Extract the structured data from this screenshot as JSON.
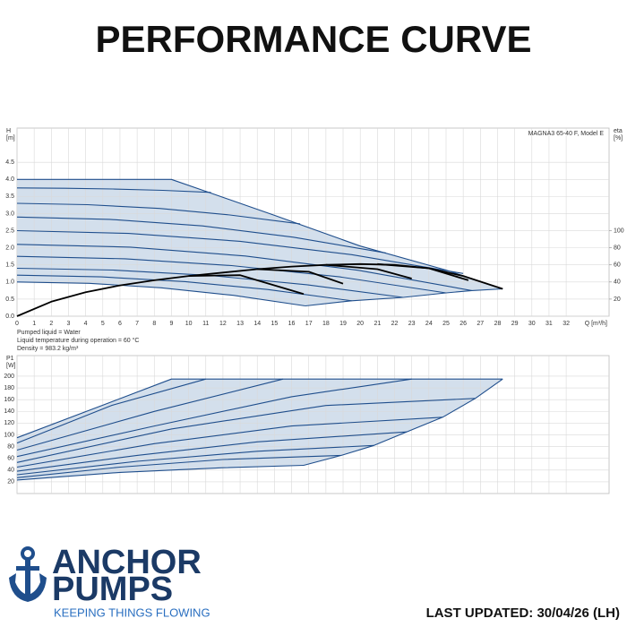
{
  "header": {
    "title": "PERFORMANCE CURVE"
  },
  "notes": [
    "Pumped liquid = Water",
    "Liquid temperature during operation = 60 °C",
    "Density = 983.2 kg/m³"
  ],
  "footer": {
    "brand_line1": "ANCHOR",
    "brand_line2": "PUMPS",
    "tagline": "KEEPING THINGS FLOWING",
    "updated": "LAST UPDATED: 30/04/26 (LH)"
  },
  "chart_data": [
    {
      "type": "line",
      "y_label": "H",
      "y_unit": "[m]",
      "y2_label": "eta",
      "y2_unit": "[%]",
      "x_label": "Q [m³/h]",
      "annotation": "MAGNA3 65-40 F, Model E",
      "grid": true,
      "fill_color": "#d3dfec",
      "xlim": [
        0,
        34.5
      ],
      "ylim": [
        0,
        5.5
      ],
      "y2lim": [
        0,
        220
      ],
      "xticks": [
        0,
        1,
        2,
        3,
        4,
        5,
        6,
        7,
        8,
        9,
        10,
        11,
        12,
        13,
        14,
        15,
        16,
        17,
        18,
        19,
        20,
        21,
        22,
        23,
        24,
        25,
        26,
        27,
        28,
        29,
        30,
        31,
        32
      ],
      "yticks": [
        {
          "value": 0,
          "label": "0.0"
        },
        0.5,
        {
          "value": 1,
          "label": "1.0"
        },
        1.5,
        {
          "value": 2,
          "label": "2.0"
        },
        2.5,
        {
          "value": 3,
          "label": "3.0"
        },
        3.5,
        {
          "value": 4,
          "label": "4.0"
        },
        4.5
      ],
      "y2ticks": [
        20,
        40,
        60,
        80,
        100
      ],
      "series": [
        {
          "color": "#1f4e8c",
          "x": [
            0,
            9,
            11,
            15,
            20,
            25,
            28.3
          ],
          "values": [
            4,
            4,
            3.65,
            2.95,
            2.05,
            1.35,
            0.8
          ]
        },
        {
          "color": "#1f4e8c",
          "x": [
            16.8,
            19.5,
            22.5,
            25,
            26.5,
            28.3
          ],
          "values": [
            0.3,
            0.45,
            0.55,
            0.68,
            0.75,
            0.8
          ]
        },
        {
          "color": "#1f4e8c",
          "x": [
            0,
            2.8,
            5.6,
            8.5,
            11.3
          ],
          "values": [
            3.75,
            3.74,
            3.72,
            3.68,
            3.62
          ]
        },
        {
          "color": "#1f4e8c",
          "x": [
            0,
            4.1,
            8.3,
            12.4,
            16.5
          ],
          "values": [
            3.3,
            3.26,
            3.15,
            2.96,
            2.7
          ]
        },
        {
          "color": "#1f4e8c",
          "x": [
            0,
            5.4,
            10.8,
            16.1,
            21.5
          ],
          "values": [
            2.9,
            2.83,
            2.64,
            2.31,
            1.85
          ]
        },
        {
          "color": "#1f4e8c",
          "x": [
            0,
            6.5,
            13,
            19.5,
            26
          ],
          "values": [
            2.5,
            2.42,
            2.19,
            1.8,
            1.25
          ]
        },
        {
          "color": "#1f4e8c",
          "x": [
            0,
            6.6,
            13.3,
            19.9,
            26.5
          ],
          "values": [
            2.1,
            2.02,
            1.76,
            1.34,
            0.75
          ]
        },
        {
          "color": "#1f4e8c",
          "x": [
            0,
            6.3,
            12.5,
            18.8,
            25
          ],
          "values": [
            1.75,
            1.68,
            1.48,
            1.15,
            0.68
          ]
        },
        {
          "color": "#1f4e8c",
          "x": [
            0,
            5.6,
            11.3,
            16.9,
            22.5
          ],
          "values": [
            1.4,
            1.35,
            1.19,
            0.92,
            0.55
          ]
        },
        {
          "color": "#1f4e8c",
          "x": [
            0,
            4.9,
            9.8,
            14.6,
            19.5
          ],
          "values": [
            1.2,
            1.15,
            1.01,
            0.78,
            0.45
          ]
        },
        {
          "color": "#1f4e8c",
          "x": [
            0,
            4.2,
            8.4,
            12.6,
            16.8
          ],
          "values": [
            1,
            0.96,
            0.83,
            0.61,
            0.3
          ]
        },
        {
          "color": "#000000",
          "axis": "y2",
          "x": [
            0,
            2,
            4,
            6,
            8,
            10,
            12,
            14,
            16,
            18,
            20,
            22,
            24,
            26,
            28.3
          ],
          "values": [
            0,
            17,
            28,
            36,
            42,
            47,
            51,
            55,
            58,
            60,
            61,
            60,
            56,
            47,
            32
          ]
        },
        {
          "color": "#000000",
          "axis": "y2",
          "x": [
            10,
            13,
            16.7
          ],
          "values": [
            47,
            48,
            26
          ]
        },
        {
          "color": "#000000",
          "axis": "y2",
          "x": [
            14,
            17,
            19
          ],
          "values": [
            55,
            52,
            38
          ]
        },
        {
          "color": "#000000",
          "axis": "y2",
          "x": [
            18,
            21,
            23
          ],
          "values": [
            60,
            55,
            44
          ]
        },
        {
          "color": "#000000",
          "axis": "y2",
          "x": [
            21,
            24,
            26.3
          ],
          "values": [
            61,
            56,
            42
          ]
        }
      ]
    },
    {
      "type": "line",
      "y_label": "P1",
      "y_unit": "[W]",
      "grid": true,
      "fill_color": "#d3dfec",
      "xtick_labels": false,
      "xlim": [
        0,
        34.5
      ],
      "ylim": [
        0,
        235
      ],
      "xticks": [
        0,
        1,
        2,
        3,
        4,
        5,
        6,
        7,
        8,
        9,
        10,
        11,
        12,
        13,
        14,
        15,
        16,
        17,
        18,
        19,
        20,
        21,
        22,
        23,
        24,
        25,
        26,
        27,
        28,
        29,
        30,
        31,
        32
      ],
      "yticks": [
        20,
        40,
        60,
        80,
        100,
        120,
        140,
        160,
        180,
        200
      ],
      "series": [
        {
          "color": "#1f4e8c",
          "x": [
            0,
            9,
            28.3
          ],
          "values": [
            95,
            195,
            195
          ]
        },
        {
          "color": "#1f4e8c",
          "x": [
            16.7,
            18.9,
            20.8,
            22.7,
            24.8,
            26.7,
            28.3
          ],
          "values": [
            48,
            65,
            82,
            105,
            130,
            162,
            195
          ]
        },
        {
          "color": "#1f4e8c",
          "x": [
            0,
            5.5,
            11
          ],
          "values": [
            86,
            150,
            195
          ]
        },
        {
          "color": "#1f4e8c",
          "x": [
            0,
            8,
            15.5
          ],
          "values": [
            74,
            140,
            195
          ]
        },
        {
          "color": "#1f4e8c",
          "x": [
            0,
            8,
            16,
            23
          ],
          "values": [
            63,
            115,
            165,
            195
          ]
        },
        {
          "color": "#1f4e8c",
          "x": [
            0,
            9,
            18,
            26.7
          ],
          "values": [
            53,
            110,
            150,
            162
          ]
        },
        {
          "color": "#1f4e8c",
          "x": [
            0,
            8,
            16,
            24.8
          ],
          "values": [
            45,
            85,
            115,
            130
          ]
        },
        {
          "color": "#1f4e8c",
          "x": [
            0,
            7,
            14,
            22.7
          ],
          "values": [
            38,
            65,
            88,
            105
          ]
        },
        {
          "color": "#1f4e8c",
          "x": [
            0,
            7,
            14,
            20.8
          ],
          "values": [
            32,
            55,
            72,
            82
          ]
        },
        {
          "color": "#1f4e8c",
          "x": [
            0,
            6,
            12,
            18.9
          ],
          "values": [
            27,
            45,
            58,
            65
          ]
        },
        {
          "color": "#1f4e8c",
          "x": [
            0,
            6,
            12,
            16.7
          ],
          "values": [
            23,
            36,
            44,
            48
          ]
        }
      ]
    }
  ]
}
